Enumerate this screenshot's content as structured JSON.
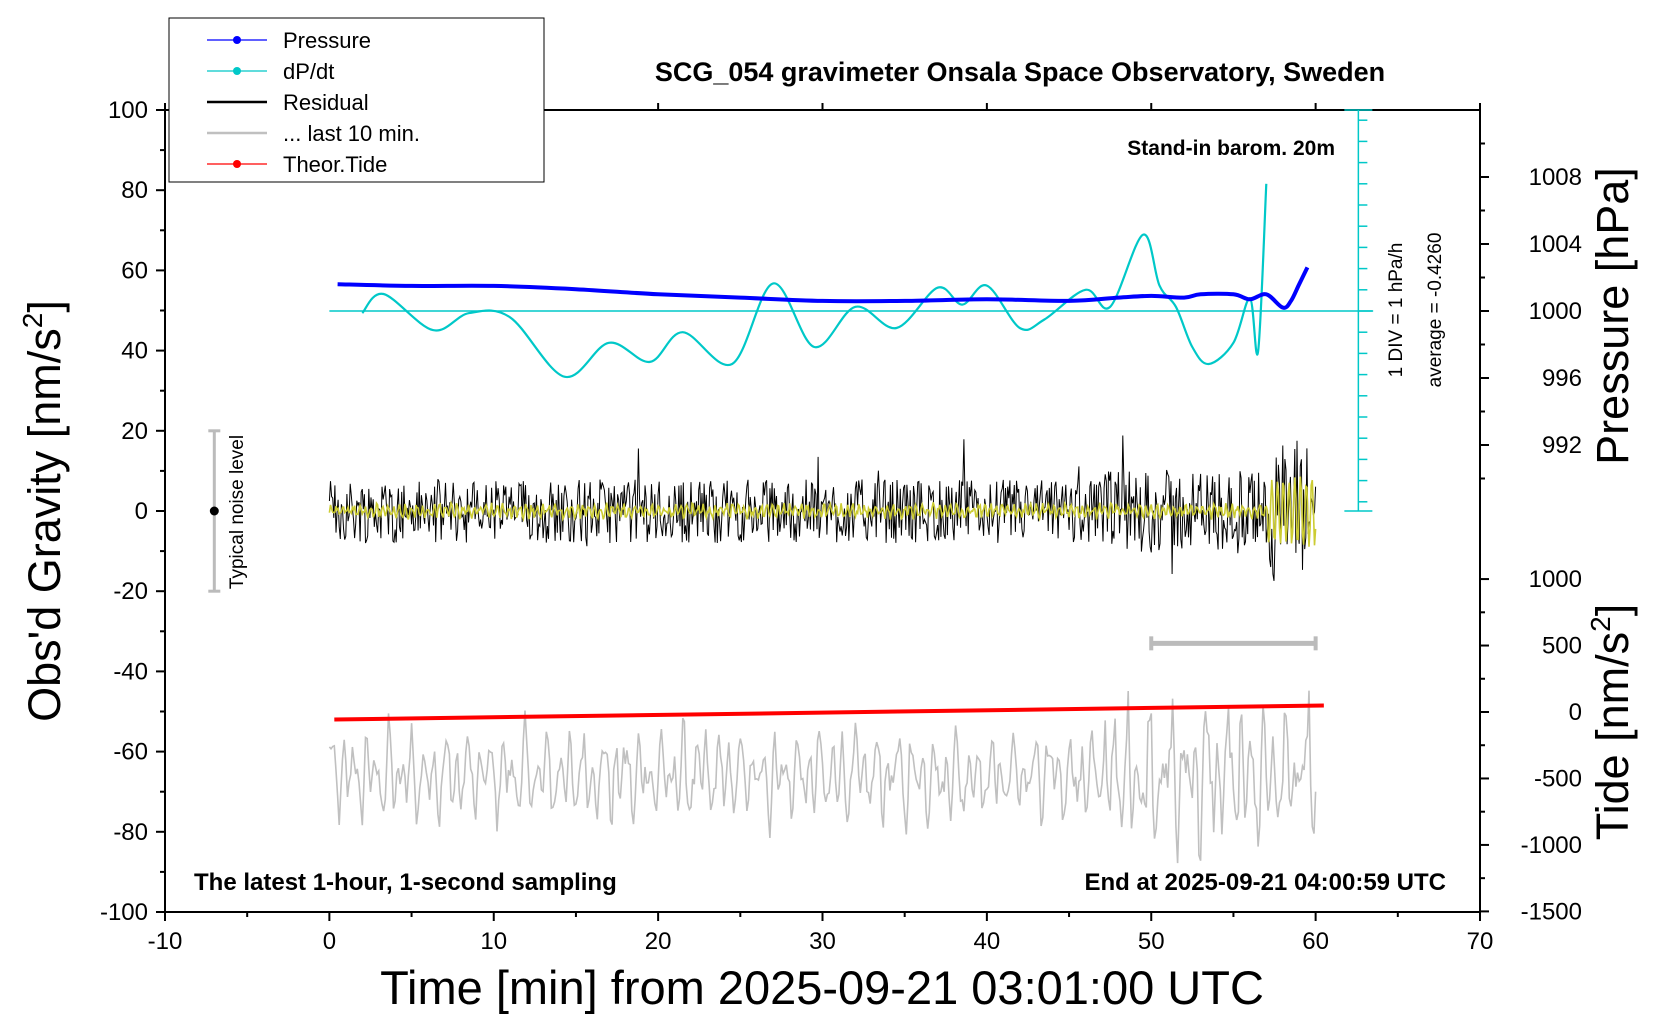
{
  "chart_data": {
    "type": "line",
    "title": "SCG_054 gravimeter Onsala Space Observatory, Sweden",
    "xlabel": "Time [min] from 2025-09-21 03:01:00 UTC",
    "ylabel_left": "Obs'd Gravity [nm/s",
    "ylabel_left_sup": "2",
    "ylabel_left_tail": "]",
    "ylabel_right_pressure": "Pressure [hPa]",
    "ylabel_right_tide": "Tide [nm/s",
    "ylabel_right_tide_sup": "2",
    "ylabel_right_tide_tail": "]",
    "xlim": [
      -10,
      70
    ],
    "ylim": [
      -100,
      100
    ],
    "grid": false,
    "legend_position": "top-left",
    "x_ticks": [
      "-10",
      "0",
      "10",
      "20",
      "30",
      "40",
      "50",
      "60",
      "70"
    ],
    "y_ticks": [
      "100",
      "80",
      "60",
      "40",
      "20",
      "0",
      "-20",
      "-40",
      "-60",
      "-80",
      "-100"
    ],
    "pressure_ticks": [
      "1008",
      "1004",
      "1000",
      "996",
      "992"
    ],
    "tide_ticks": [
      "1000",
      "500",
      "0",
      "-500",
      "-1000",
      "-1500"
    ],
    "legend": [
      {
        "name": "Pressure",
        "color": "#0000ff",
        "marker": true
      },
      {
        "name": "dP/dt",
        "color": "#00c8c8",
        "marker": true
      },
      {
        "name": "Residual",
        "color": "#000000",
        "marker": false
      },
      {
        "name": "... last 10 min.",
        "color": "#c0c0c0",
        "marker": false
      },
      {
        "name": "Theor.Tide",
        "color": "#ff0000",
        "marker": true
      }
    ],
    "annotations": {
      "barometer": "Stand-in barom. 20m",
      "div_label": "1 DIV = 1 hPa/h",
      "average_label": "average = -0.4260",
      "noise_label": "Typical noise level",
      "bottom_left": "The latest 1-hour, 1-second sampling",
      "bottom_right": "End at 2025-09-21 04:00:59 UTC"
    },
    "noise_bar": {
      "x": -7,
      "y_low": -20,
      "y_high": 20,
      "center": 0
    },
    "last10_bar": {
      "x_start": 50,
      "x_end": 60
    },
    "series": [
      {
        "name": "Pressure",
        "unit": "hPa",
        "color": "#0000ff",
        "x": [
          0.5,
          5,
          10,
          15,
          20,
          25,
          30,
          35,
          40,
          45,
          48,
          50,
          52,
          53,
          55,
          56,
          57,
          58,
          58.5,
          59,
          59.5
        ],
        "y": [
          1001.6,
          1001.5,
          1001.5,
          1001.3,
          1001.0,
          1000.8,
          1000.6,
          1000.6,
          1000.7,
          1000.6,
          1000.8,
          1000.9,
          1000.8,
          1001.0,
          1001.0,
          1000.7,
          1001.0,
          1000.2,
          1000.6,
          1001.6,
          1002.6
        ]
      },
      {
        "name": "dP/dt",
        "unit": "hPa/h",
        "color": "#00c8c8",
        "x": [
          2,
          3.3,
          6.3,
          8.5,
          11,
          14.3,
          17,
          19.5,
          21.5,
          24.5,
          27,
          29.5,
          32,
          34.5,
          37,
          38.5,
          40,
          42,
          43.5,
          46,
          47.5,
          49.5,
          50.5,
          51.5,
          52.5,
          53.5,
          55,
          56,
          56.5,
          57
        ],
        "y": [
          -0.1,
          0.8,
          -0.9,
          -0.1,
          -0.3,
          -3.1,
          -1.5,
          -2.4,
          -1.0,
          -2.5,
          1.3,
          -1.7,
          0.2,
          -0.8,
          1.1,
          0.3,
          1.2,
          -0.8,
          -0.4,
          1.0,
          0.2,
          3.6,
          1.2,
          0.2,
          -1.7,
          -2.5,
          -1.5,
          0.6,
          -1.9,
          6.0
        ]
      },
      {
        "name": "Residual",
        "unit": "nm/s2",
        "color": "#000000",
        "x_range": [
          0,
          60
        ],
        "typical_amplitude": 8,
        "min": -25,
        "max": 25
      },
      {
        "name": "... last 10 min.",
        "unit": "nm/s2",
        "color": "#c0c0c0",
        "x_range": [
          0,
          60
        ],
        "min": -88,
        "max": -37
      },
      {
        "name": "Theor.Tide",
        "unit": "nm/s2",
        "color": "#ff0000",
        "x": [
          0.3,
          60.5
        ],
        "y": [
          -52,
          -48.5
        ]
      }
    ]
  }
}
